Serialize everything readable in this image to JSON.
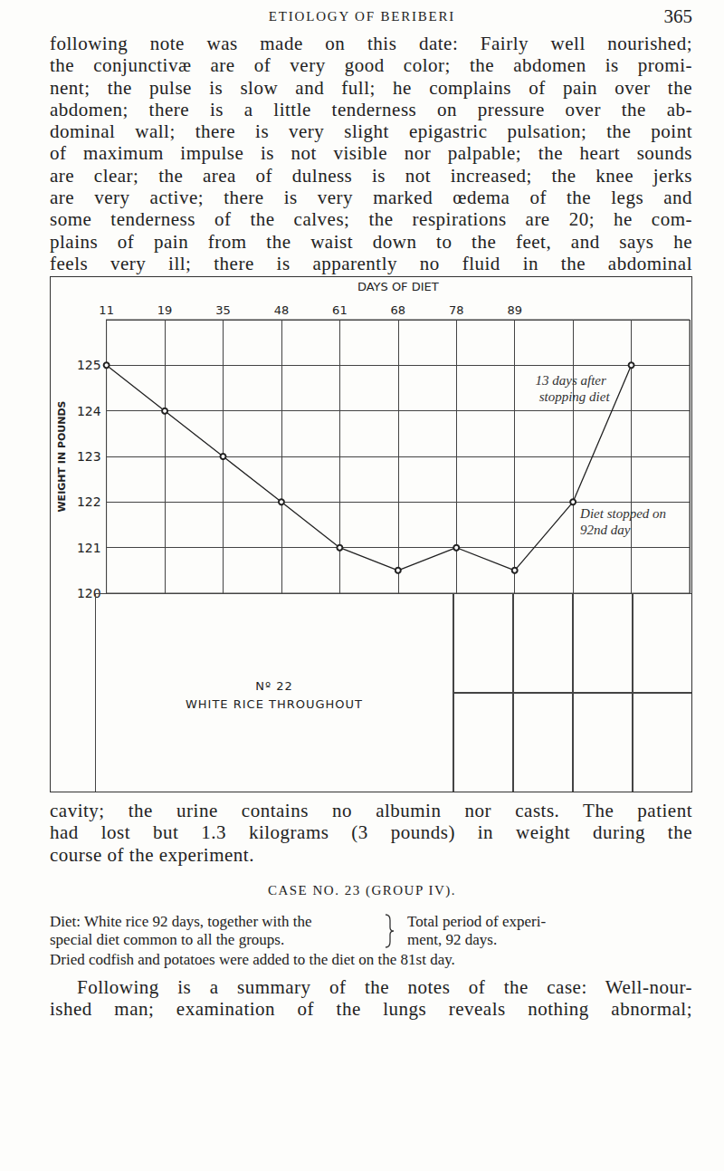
{
  "header": {
    "title": "ETIOLOGY OF BERIBERI",
    "page": "365"
  },
  "text_before": [
    "following note was made on this date: Fairly well nourished;",
    "the conjunctivæ are of very good color; the abdomen is promi-",
    "nent; the pulse is slow and full; he complains of pain over the",
    "abdomen; there is a little tenderness on pressure over the ab-",
    "dominal wall; there is very slight epigastric pulsation; the point",
    "of maximum impulse is not visible nor palpable; the heart sounds",
    "are clear; the area of dulness is not increased; the knee jerks",
    "are very active; there is very marked œdema of the legs and",
    "some tenderness of the calves; the respirations are 20; he com-",
    "plains of pain from the waist down to the feet, and says he",
    "feels very ill; there is apparently no fluid in the abdominal"
  ],
  "chart_data": {
    "type": "line",
    "x_label": "DAYS OF DIET",
    "y_label": "WEIGHT IN POUNDS",
    "categories": [
      "11",
      "19",
      "35",
      "48",
      "61",
      "68",
      "78",
      "89",
      null,
      null,
      null
    ],
    "values": [
      125,
      124,
      123,
      122,
      121,
      120.5,
      121,
      120.5,
      122,
      125,
      null
    ],
    "ylim": [
      120,
      126
    ],
    "yticks": [
      120,
      121,
      122,
      123,
      124,
      125
    ],
    "grid": true,
    "color": "#222222",
    "marker": "circle",
    "annotations": [
      "13 days after stopping diet",
      "Diet stopped on 92nd day"
    ],
    "caption": [
      "Nº 22",
      "WHITE RICE THROUGHOUT"
    ]
  },
  "text_after": [
    "cavity; the urine contains no albumin nor casts. The patient",
    "had lost but 1.3 kilograms (3 pounds) in weight during the",
    "course of the experiment."
  ],
  "case_heading": "CASE NO. 23 (GROUP IV).",
  "diet": {
    "left": [
      "Diet: White rice 92 days, together with the",
      "special diet common to all the groups."
    ],
    "right": [
      "Total period of experi-",
      "ment, 92 days."
    ],
    "note": "Dried codfish and potatoes were added to the diet on the 81st day."
  },
  "text_final": [
    "Following is a summary of the notes of the case: Well-nour-",
    "ished man; examination of the lungs reveals nothing abnormal;"
  ]
}
